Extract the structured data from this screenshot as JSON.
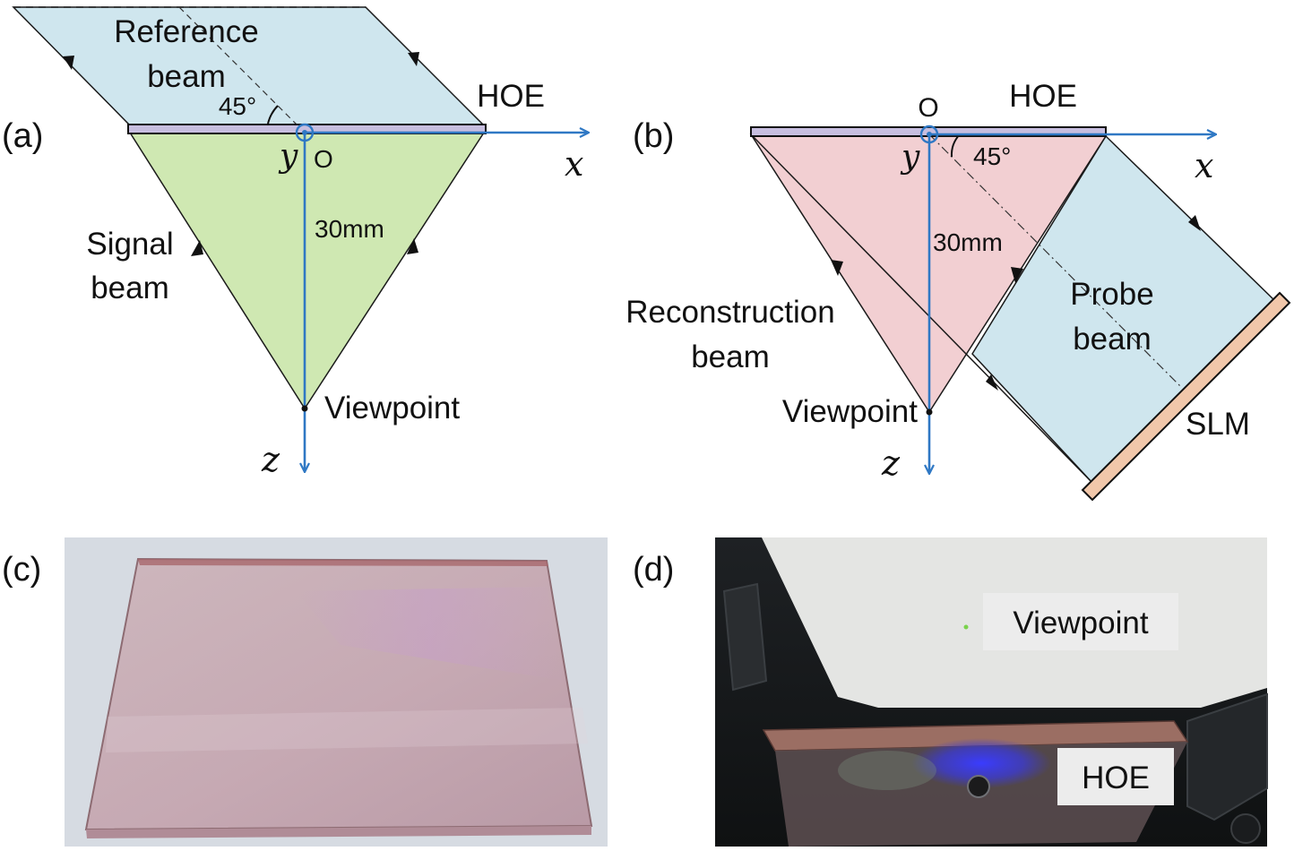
{
  "colors": {
    "reference_beam_fill": "#cfe6ee",
    "signal_beam_fill": "#cfe8b2",
    "reconstruction_beam_fill": "#f2cfd2",
    "probe_beam_fill": "#cfe6ee",
    "hoe_plate": "#c7bedf",
    "slm_plate": "#f1c7aa",
    "axis_blue": "#2f78c4"
  },
  "panel_a": {
    "panel_label": "(a)",
    "reference_beam": [
      "Reference",
      "beam"
    ],
    "angle": "45°",
    "hoe": "HOE",
    "origin": "O",
    "axis_x": "x",
    "axis_y": "y",
    "axis_z": "z",
    "distance": "30mm",
    "signal_beam": [
      "Signal",
      "beam"
    ],
    "viewpoint": "Viewpoint"
  },
  "panel_b": {
    "panel_label": "(b)",
    "origin": "O",
    "hoe": "HOE",
    "axis_x": "x",
    "axis_y": "y",
    "axis_z": "z",
    "angle": "45°",
    "distance": "30mm",
    "probe_beam": [
      "Probe",
      "beam"
    ],
    "reconstruction_beam": [
      "Reconstruction",
      "beam"
    ],
    "viewpoint": "Viewpoint",
    "slm": "SLM"
  },
  "panel_c": {
    "panel_label": "(c)"
  },
  "panel_d": {
    "panel_label": "(d)",
    "viewpoint": "Viewpoint",
    "hoe": "HOE"
  }
}
